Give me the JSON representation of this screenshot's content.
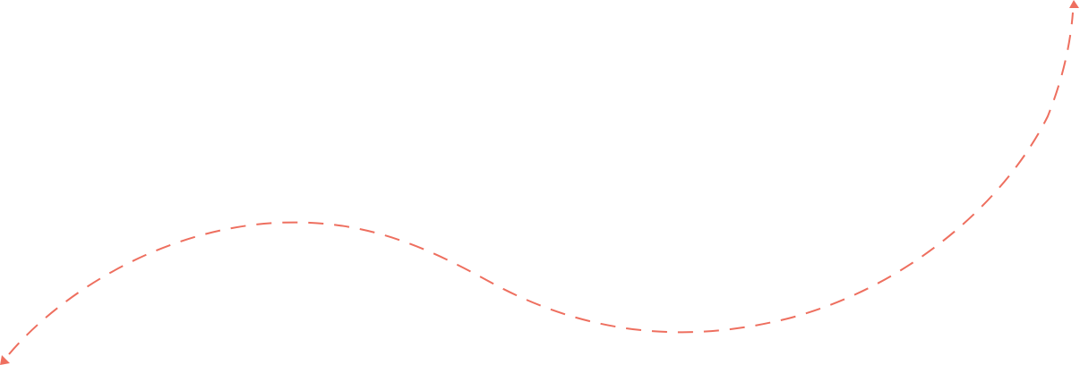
{
  "diagram": {
    "stroke_color": "#ee6f5f",
    "background_color": "#ffffff",
    "line_style": "dashed",
    "arrowheads": "both-ends",
    "start_marker_icon": "arrowhead-down-left-icon",
    "end_marker_icon": "arrowhead-up-icon"
  }
}
